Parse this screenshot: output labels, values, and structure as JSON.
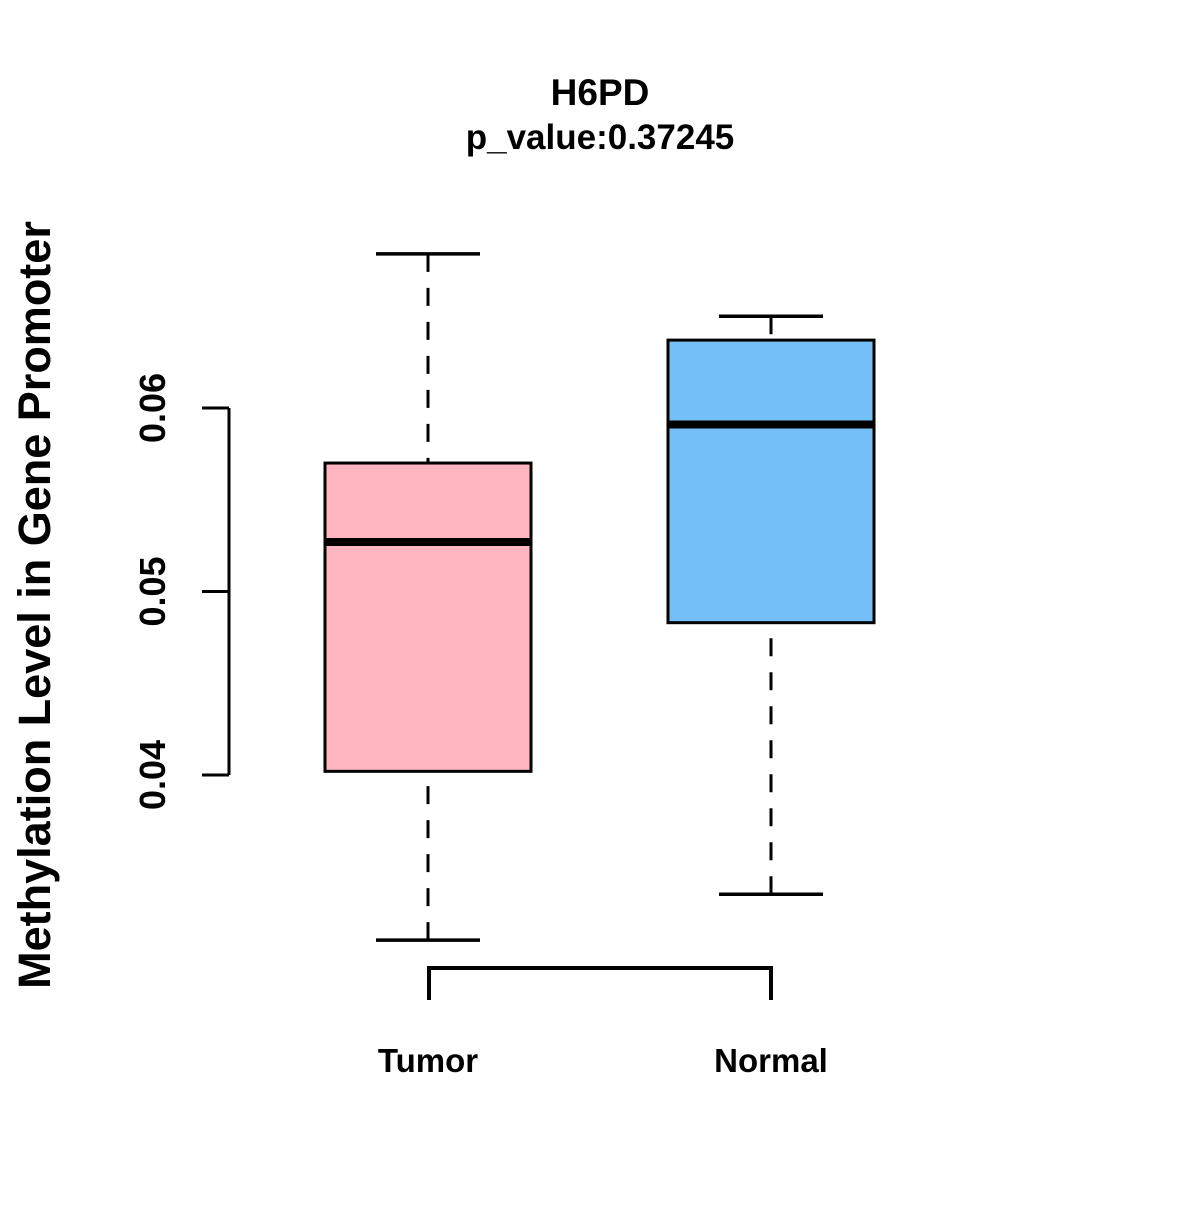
{
  "chart_data": {
    "type": "boxplot",
    "title": "H6PD",
    "subtitle": "p_value:0.37245",
    "ylabel": "Methylation Level in Gene Promoter",
    "xlabel": "",
    "categories": [
      "Tumor",
      "Normal"
    ],
    "series": [
      {
        "name": "Tumor",
        "color": "#FFB6C1",
        "whisker_low": 0.031,
        "q1": 0.0402,
        "median": 0.0527,
        "q3": 0.057,
        "whisker_high": 0.0684
      },
      {
        "name": "Normal",
        "color": "#74BFF7",
        "whisker_low": 0.0335,
        "q1": 0.0483,
        "median": 0.0591,
        "q3": 0.0637,
        "whisker_high": 0.065
      }
    ],
    "yticks": [
      {
        "value": 0.04,
        "label": "0.04"
      },
      {
        "value": 0.05,
        "label": "0.05"
      },
      {
        "value": 0.06,
        "label": "0.06"
      }
    ],
    "ylim": [
      0.029,
      0.0695
    ],
    "grid": false,
    "legend": "none",
    "stroke_color": "#000000",
    "background_color": "#FFFFFF"
  }
}
